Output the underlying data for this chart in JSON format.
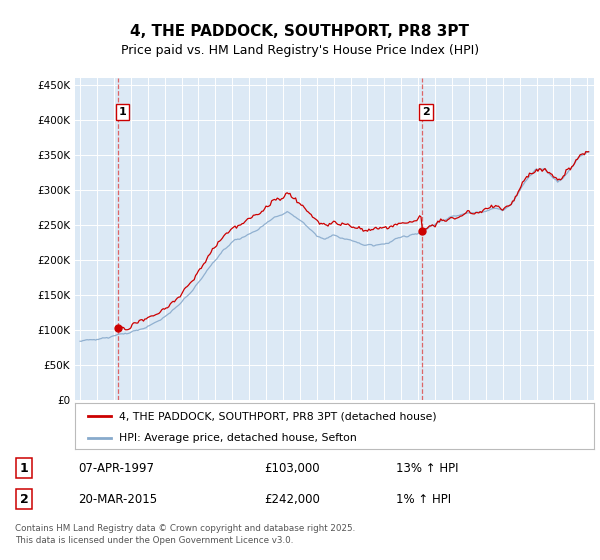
{
  "title": "4, THE PADDOCK, SOUTHPORT, PR8 3PT",
  "subtitle": "Price paid vs. HM Land Registry's House Price Index (HPI)",
  "ylim": [
    0,
    460000
  ],
  "yticks": [
    0,
    50000,
    100000,
    150000,
    200000,
    250000,
    300000,
    350000,
    400000,
    450000
  ],
  "ytick_labels": [
    "£0",
    "£50K",
    "£100K",
    "£150K",
    "£200K",
    "£250K",
    "£300K",
    "£350K",
    "£400K",
    "£450K"
  ],
  "background_color": "#dce9f5",
  "fig_bg_color": "#ffffff",
  "grid_color": "#ffffff",
  "sale1_year": 1997.27,
  "sale1_price": 103000,
  "sale2_year": 2015.22,
  "sale2_price": 242000,
  "legend_label1": "4, THE PADDOCK, SOUTHPORT, PR8 3PT (detached house)",
  "legend_label2": "HPI: Average price, detached house, Sefton",
  "table_row1": [
    "1",
    "07-APR-1997",
    "£103,000",
    "13% ↑ HPI"
  ],
  "table_row2": [
    "2",
    "20-MAR-2015",
    "£242,000",
    "1% ↑ HPI"
  ],
  "footer": "Contains HM Land Registry data © Crown copyright and database right 2025.\nThis data is licensed under the Open Government Licence v3.0.",
  "line_color_property": "#cc0000",
  "line_color_hpi": "#88aacc",
  "title_fontsize": 11,
  "subtitle_fontsize": 9
}
